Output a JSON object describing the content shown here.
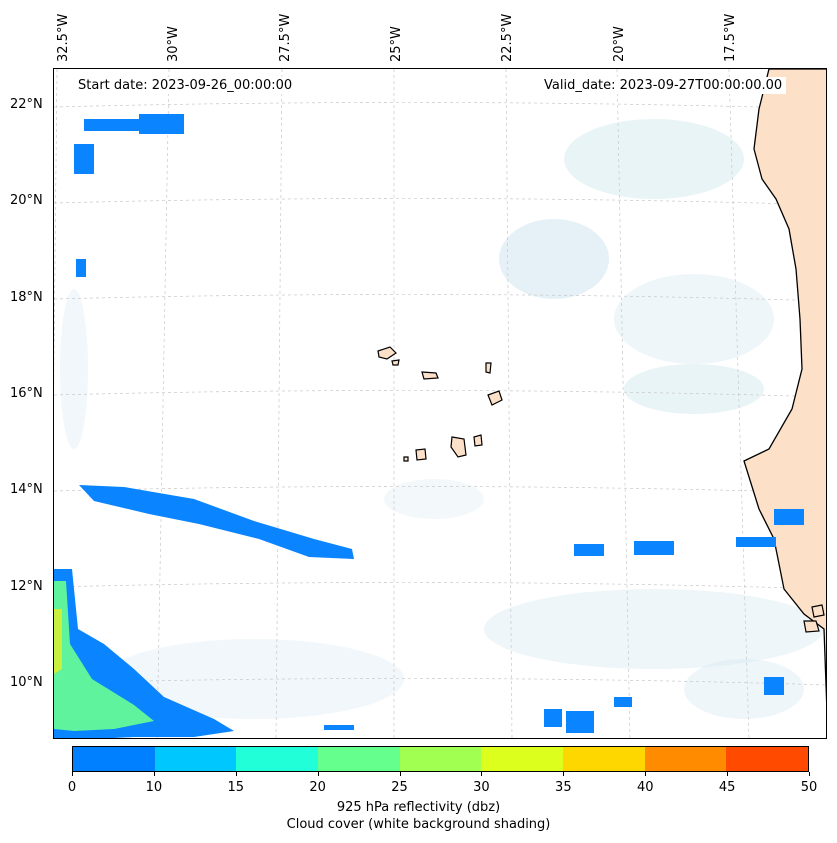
{
  "annotations": {
    "start_date": "Start date: 2023-09-26_00:00:00",
    "valid_date": "Valid_date: 2023-09-27T00:00:00.00"
  },
  "longitude_labels": [
    "32.5°W",
    "30°W",
    "27.5°W",
    "25°W",
    "22.5°W",
    "20°W",
    "17.5°W"
  ],
  "latitude_labels": [
    "22°N",
    "20°N",
    "18°N",
    "16°N",
    "14°N",
    "12°N",
    "10°N"
  ],
  "colorbar": {
    "ticks": [
      "0",
      "10",
      "15",
      "20",
      "25",
      "30",
      "35",
      "40",
      "45",
      "50"
    ],
    "colors": [
      "#0080ff",
      "#00c8ff",
      "#20ffd8",
      "#64ff8c",
      "#a0ff50",
      "#dcff1e",
      "#ffd700",
      "#ff8c00",
      "#ff4a00"
    ],
    "title_line1": "925 hPa reflectivity (dbz)",
    "title_line2": "Cloud cover (white background shading)"
  },
  "colors": {
    "land": "#fde0c8",
    "cloud": "#cfe6ee",
    "reflectivity_low": "#0a84ff",
    "reflectivity_mid": "#5ef39c",
    "reflectivity_high": "#c8f03c"
  }
}
